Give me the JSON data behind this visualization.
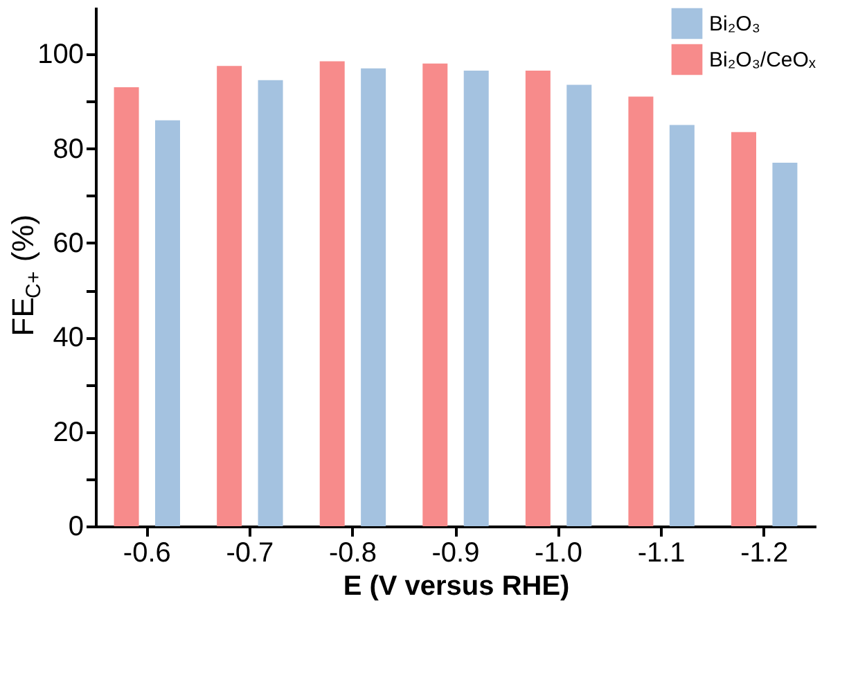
{
  "chart_data": {
    "type": "bar",
    "xlabel": "E (V versus RHE)",
    "ylabel": "FE$_{C+}$ (%)",
    "categories": [
      "-0.6",
      "-0.7",
      "-0.8",
      "-0.9",
      "-1.0",
      "-1.1",
      "-1.2"
    ],
    "series": [
      {
        "name": "Bi₂O₃",
        "color": "#a4c2e0",
        "values": [
          86,
          94.5,
          97,
          96.5,
          93.5,
          85,
          77
        ]
      },
      {
        "name": "Bi₂O₃/CeOₓ",
        "color": "#f78b8b",
        "values": [
          93,
          97.5,
          98.5,
          98,
          96.5,
          91,
          83.5
        ]
      }
    ],
    "ylim": [
      0,
      110
    ],
    "yticks": [
      0,
      {
        "value": 10,
        "label": null
      },
      20,
      {
        "value": 30,
        "label": null
      },
      40,
      {
        "value": 50,
        "label": null
      },
      60,
      {
        "value": 70,
        "label": null
      },
      80,
      {
        "value": 90,
        "label": null
      },
      100
    ],
    "grid": false,
    "legend": "top right"
  }
}
